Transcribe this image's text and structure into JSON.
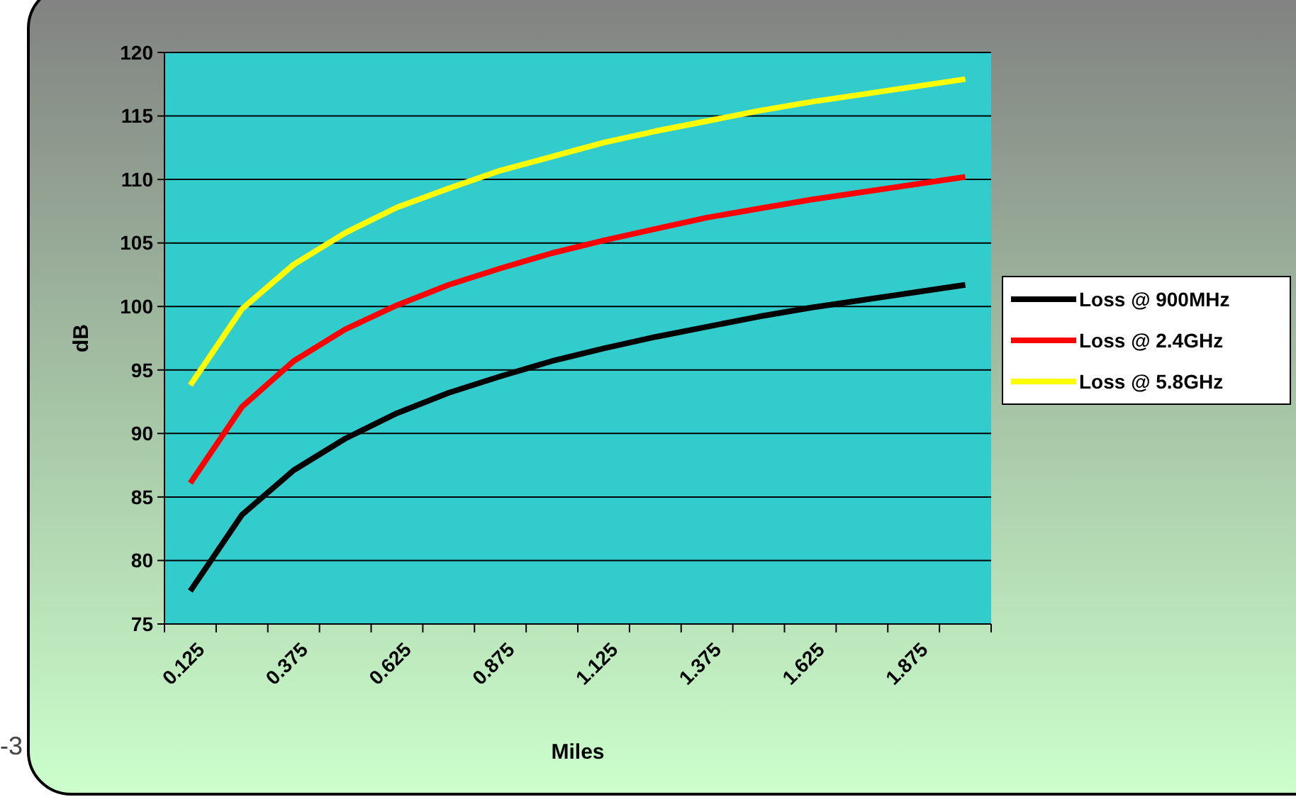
{
  "chart_data": {
    "type": "line",
    "xlabel": "Miles",
    "ylabel": "dB",
    "categories": [
      "0.125",
      null,
      "0.375",
      null,
      "0.625",
      null,
      "0.875",
      null,
      "1.125",
      null,
      "1.375",
      null,
      "1.625",
      null,
      "1.875",
      null
    ],
    "series": [
      {
        "name": "Loss @ 900MHz",
        "color": "#000000",
        "values": [
          77.6,
          83.6,
          87.1,
          89.6,
          91.6,
          93.2,
          94.5,
          95.7,
          96.7,
          97.6,
          98.4,
          99.2,
          99.9,
          100.5,
          101.1,
          101.7
        ]
      },
      {
        "name": "Loss @ 2.4GHz",
        "color": "#ff0000",
        "values": [
          86.1,
          92.1,
          95.7,
          98.2,
          100.1,
          101.7,
          103.0,
          104.2,
          105.2,
          106.1,
          107.0,
          107.7,
          108.4,
          109.0,
          109.6,
          110.2
        ]
      },
      {
        "name": "Loss @ 5.8GHz",
        "color": "#ffff00",
        "values": [
          93.8,
          99.8,
          103.3,
          105.8,
          107.8,
          109.3,
          110.7,
          111.8,
          112.9,
          113.8,
          114.6,
          115.4,
          116.1,
          116.7,
          117.3,
          117.9
        ]
      }
    ],
    "ylim": [
      75,
      120
    ],
    "yticks": [
      75,
      80,
      85,
      90,
      95,
      100,
      105,
      110,
      115,
      120
    ],
    "grid": "y",
    "legend": "right",
    "marker": "none",
    "line_style": "solid",
    "annotations": [
      "-3"
    ]
  }
}
